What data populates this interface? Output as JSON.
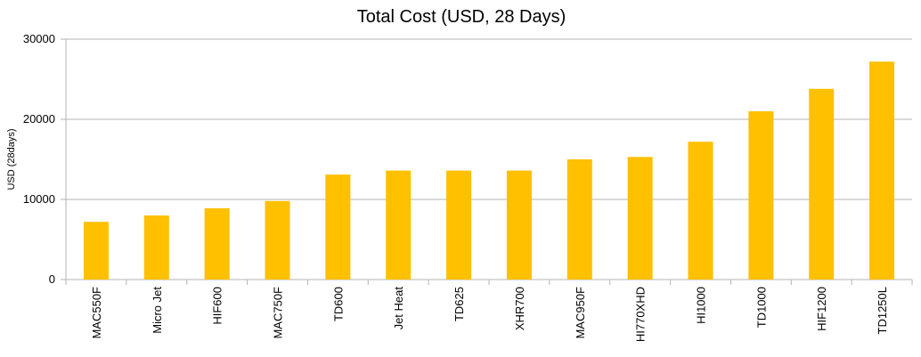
{
  "chart_data": {
    "type": "bar",
    "title": "Total Cost (USD, 28 Days)",
    "y_label": "USD (28days)",
    "categories": [
      "MAC550F",
      "Micro Jet",
      "HIF600",
      "MAC750F",
      "TD600",
      "Jet Heat",
      "TD625",
      "XHR700",
      "MAC950F",
      "HI770XHD",
      "HI1000",
      "TD1000",
      "HIF1200",
      "TD1250L"
    ],
    "values": [
      7200,
      8000,
      8900,
      9800,
      13100,
      13600,
      13600,
      13600,
      15000,
      15300,
      17200,
      21000,
      23800,
      27200
    ],
    "color": "#ffc000",
    "ylim": [
      0,
      30000
    ],
    "yticks": [
      0,
      10000,
      20000,
      30000
    ],
    "grid": true
  }
}
